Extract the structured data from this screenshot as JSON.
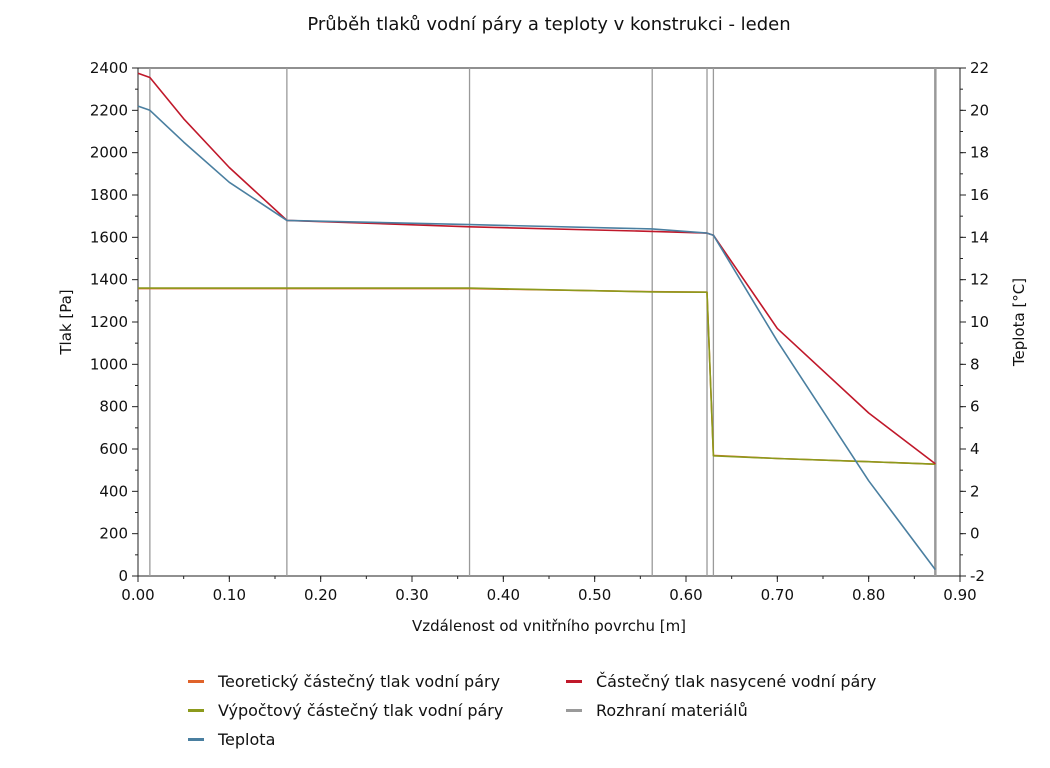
{
  "chart_data": {
    "type": "line",
    "title": "Průběh tlaků vodní páry a teploty v konstrukci - leden",
    "xlabel": "Vzdálenost od vnitřního povrchu [m]",
    "ylabel_left": "Tlak [Pa]",
    "ylabel_right": "Teplota [°C]",
    "xlim": [
      0,
      0.9
    ],
    "ylim_left": [
      0,
      2400
    ],
    "ylim_right": [
      -2,
      22
    ],
    "x_ticks": [
      "0.00",
      "0.10",
      "0.20",
      "0.30",
      "0.40",
      "0.50",
      "0.60",
      "0.70",
      "0.80",
      "0.90"
    ],
    "y_left_ticks": [
      "0",
      "200",
      "400",
      "600",
      "800",
      "1000",
      "1200",
      "1400",
      "1600",
      "1800",
      "2000",
      "2200",
      "2400"
    ],
    "y_right_ticks": [
      "-2",
      "0",
      "2",
      "4",
      "6",
      "8",
      "10",
      "12",
      "14",
      "16",
      "18",
      "20",
      "22"
    ],
    "material_interfaces": [
      0.013,
      0.163,
      0.363,
      0.563,
      0.623,
      0.63,
      0.873
    ],
    "legend_position": "bottom",
    "series": [
      {
        "name": "Teoretický částečný tlak vodní páry",
        "axis": "left",
        "color": "#e0632a",
        "x": [
          0,
          0.013,
          0.163,
          0.363,
          0.563,
          0.623,
          0.63,
          0.7,
          0.8,
          0.873
        ],
        "y": [
          1358,
          1358,
          1358,
          1358,
          1343,
          1341,
          570,
          555,
          540,
          528
        ]
      },
      {
        "name": "Částečný tlak nasycené vodní páry",
        "axis": "left",
        "color": "#c0182a",
        "x": [
          0,
          0.013,
          0.05,
          0.1,
          0.163,
          0.363,
          0.563,
          0.623,
          0.63,
          0.7,
          0.8,
          0.873
        ],
        "y": [
          2375,
          2355,
          2160,
          1930,
          1680,
          1650,
          1628,
          1620,
          1610,
          1170,
          770,
          530
        ]
      },
      {
        "name": "Výpočtový částečný tlak vodní páry",
        "axis": "left",
        "color": "#8c9a1c",
        "x": [
          0,
          0.013,
          0.163,
          0.363,
          0.563,
          0.623,
          0.63,
          0.7,
          0.8,
          0.873
        ],
        "y": [
          1360,
          1360,
          1360,
          1360,
          1342,
          1341,
          568,
          555,
          540,
          528
        ]
      },
      {
        "name": "Rozhraní materiálů",
        "axis": "left",
        "color": "#9a9a9a",
        "x": [],
        "y": []
      },
      {
        "name": "Teplota",
        "axis": "right",
        "color": "#4a7fa0",
        "x": [
          0,
          0.013,
          0.05,
          0.1,
          0.163,
          0.363,
          0.563,
          0.623,
          0.63,
          0.7,
          0.8,
          0.873
        ],
        "y": [
          20.2,
          20.0,
          18.5,
          16.6,
          14.8,
          14.6,
          14.4,
          14.2,
          14.1,
          9.1,
          2.5,
          -1.7
        ]
      }
    ]
  }
}
